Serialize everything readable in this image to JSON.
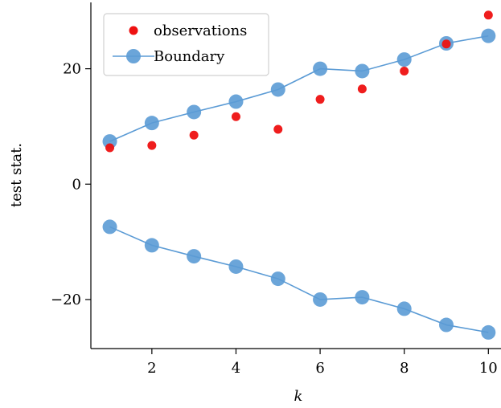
{
  "chart_data": {
    "type": "scatter",
    "xlabel": "k",
    "ylabel": "test stat.",
    "xlim": [
      0.55,
      10.3
    ],
    "ylim": [
      -28.5,
      31.5
    ],
    "x_ticks": [
      2,
      4,
      6,
      8,
      10
    ],
    "y_ticks": [
      -20,
      0,
      20
    ],
    "y_tick_labels": [
      "−20",
      "0",
      "20"
    ],
    "legend_position": "top-left",
    "series": [
      {
        "name": "observations",
        "kind": "scatter",
        "color": "#ee1111",
        "x": [
          1,
          2,
          3,
          4,
          5,
          6,
          7,
          8,
          9,
          10
        ],
        "y": [
          6.3,
          6.7,
          8.5,
          11.7,
          9.5,
          14.7,
          16.5,
          19.6,
          24.3,
          29.3
        ]
      },
      {
        "name": "Boundary",
        "kind": "line-markers",
        "color": "#5b9bd5",
        "x": [
          1,
          2,
          3,
          4,
          5,
          6,
          7,
          8,
          9,
          10
        ],
        "y": [
          7.4,
          10.6,
          12.5,
          14.3,
          16.4,
          20.0,
          19.6,
          21.6,
          24.4,
          25.7
        ]
      },
      {
        "name": "",
        "kind": "line-markers",
        "color": "#5b9bd5",
        "x": [
          1,
          2,
          3,
          4,
          5,
          6,
          7,
          8,
          9,
          10
        ],
        "y": [
          -7.4,
          -10.6,
          -12.5,
          -14.3,
          -16.4,
          -20.0,
          -19.6,
          -21.6,
          -24.4,
          -25.7
        ]
      }
    ]
  }
}
